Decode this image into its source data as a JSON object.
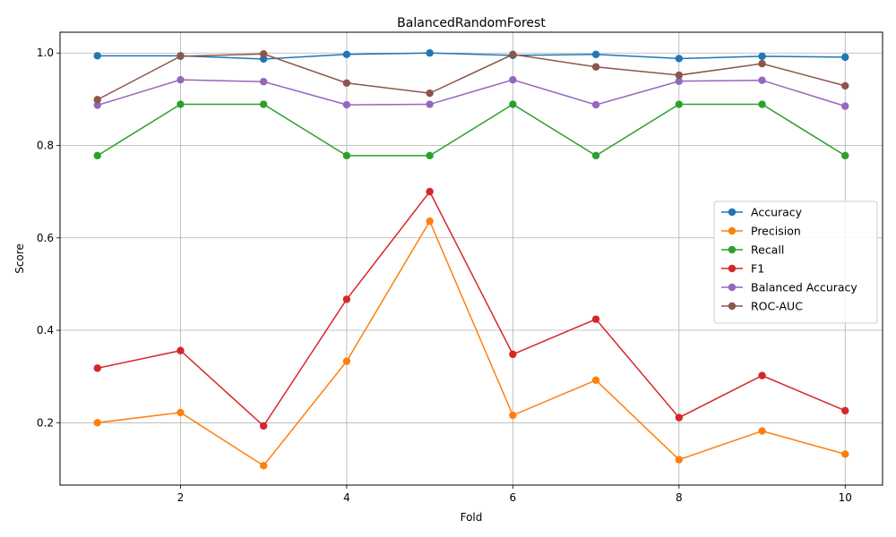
{
  "chart_data": {
    "type": "line",
    "title": "BalancedRandomForest",
    "xlabel": "Fold",
    "ylabel": "Score",
    "x": [
      1,
      2,
      3,
      4,
      5,
      6,
      7,
      8,
      9,
      10
    ],
    "xlim": [
      0.55,
      10.45
    ],
    "ylim": [
      0.065,
      1.045
    ],
    "xticks": [
      2,
      4,
      6,
      8,
      10
    ],
    "yticks": [
      0.2,
      0.4,
      0.6,
      0.8,
      1.0
    ],
    "xtick_labels": [
      "2",
      "4",
      "6",
      "8",
      "10"
    ],
    "ytick_labels": [
      "0.2",
      "0.4",
      "0.6",
      "0.8",
      "1.0"
    ],
    "grid": true,
    "legend_position": "center-right",
    "series": [
      {
        "name": "Accuracy",
        "color": "#1f77b4",
        "values": [
          0.994,
          0.994,
          0.987,
          0.997,
          1.0,
          0.995,
          0.997,
          0.988,
          0.993,
          0.991
        ]
      },
      {
        "name": "Precision",
        "color": "#ff7f0e",
        "values": [
          0.2,
          0.222,
          0.107,
          0.333,
          0.636,
          0.216,
          0.292,
          0.12,
          0.182,
          0.132
        ]
      },
      {
        "name": "Recall",
        "color": "#2ca02c",
        "values": [
          0.778,
          0.889,
          0.889,
          0.778,
          0.778,
          0.889,
          0.778,
          0.889,
          0.889,
          0.778
        ]
      },
      {
        "name": "F1",
        "color": "#d62728",
        "values": [
          0.318,
          0.356,
          0.193,
          0.467,
          0.7,
          0.348,
          0.424,
          0.211,
          0.302,
          0.226
        ]
      },
      {
        "name": "Balanced Accuracy",
        "color": "#9467bd",
        "values": [
          0.887,
          0.942,
          0.938,
          0.888,
          0.889,
          0.942,
          0.888,
          0.939,
          0.941,
          0.885
        ]
      },
      {
        "name": "ROC-AUC",
        "color": "#8c564b",
        "values": [
          0.899,
          0.993,
          0.998,
          0.935,
          0.913,
          0.997,
          0.97,
          0.952,
          0.977,
          0.929
        ]
      }
    ]
  }
}
